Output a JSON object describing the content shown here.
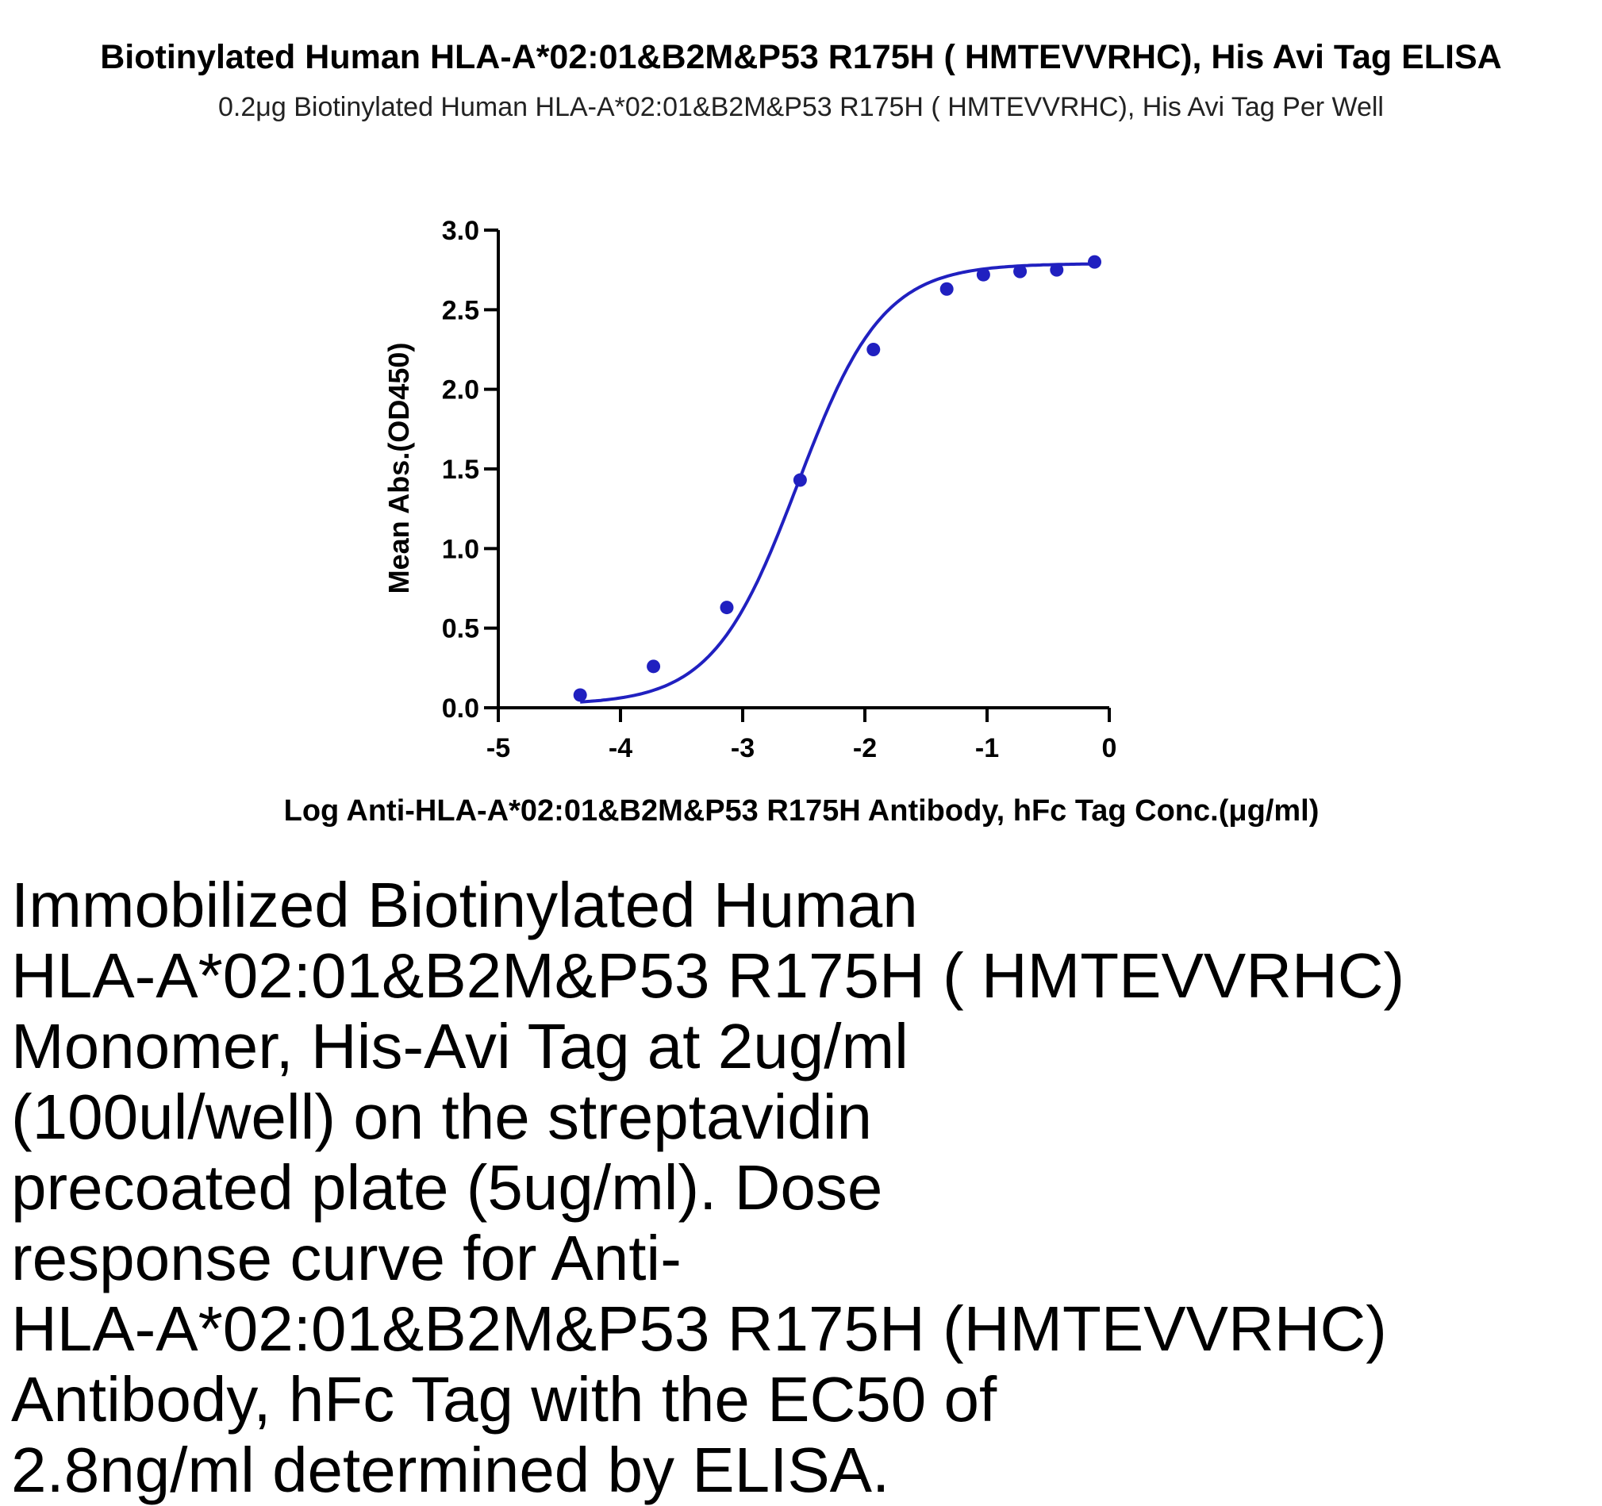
{
  "header": {
    "title": "Biotinylated Human HLA-A*02:01&B2M&P53 R175H ( HMTEVVRHC), His Avi Tag ELISA",
    "subtitle": "0.2μg Biotinylated Human HLA-A*02:01&B2M&P53 R175H ( HMTEVVRHC), His Avi Tag Per Well"
  },
  "chart_data": {
    "type": "scatter",
    "title": "Biotinylated Human HLA-A*02:01&B2M&P53 R175H ( HMTEVVRHC), His Avi Tag ELISA",
    "subtitle": "0.2μg Biotinylated Human HLA-A*02:01&B2M&P53 R175H ( HMTEVVRHC), His Avi Tag Per Well",
    "xlabel": "Log Anti-HLA-A*02:01&B2M&P53 R175H Antibody, hFc Tag Conc.(μg/ml)",
    "ylabel": "Mean Abs.(OD450)",
    "xlim": [
      -5,
      0
    ],
    "ylim": [
      0,
      3
    ],
    "x_ticks": [
      "-5",
      "-4",
      "-3",
      "-2",
      "-1",
      "0"
    ],
    "y_ticks": [
      "0.0",
      "0.5",
      "1.0",
      "1.5",
      "2.0",
      "2.5",
      "3.0"
    ],
    "grid": false,
    "color": "#2020c0",
    "series": [
      {
        "x": [
          -4.33,
          -3.73,
          -3.13,
          -2.53,
          -1.93,
          -1.33,
          -1.03,
          -0.73,
          -0.43,
          -0.12
        ],
        "y": [
          0.08,
          0.26,
          0.63,
          1.43,
          2.25,
          2.63,
          2.72,
          2.74,
          2.75,
          2.8
        ],
        "fit": "four-parameter logistic"
      }
    ]
  },
  "caption": {
    "lines": [
      "Immobilized Biotinylated Human",
      "HLA-A*02:01&B2M&P53 R175H ( HMTEVVRHC)",
      "Monomer, His-Avi Tag at 2ug/ml",
      "(100ul/well) on the streptavidin",
      "precoated plate (5ug/ml). Dose",
      "response curve for Anti-",
      "HLA-A*02:01&B2M&P53 R175H (HMTEVVRHC)",
      "Antibody, hFc Tag with the EC50 of",
      "2.8ng/ml determined by ELISA."
    ]
  }
}
